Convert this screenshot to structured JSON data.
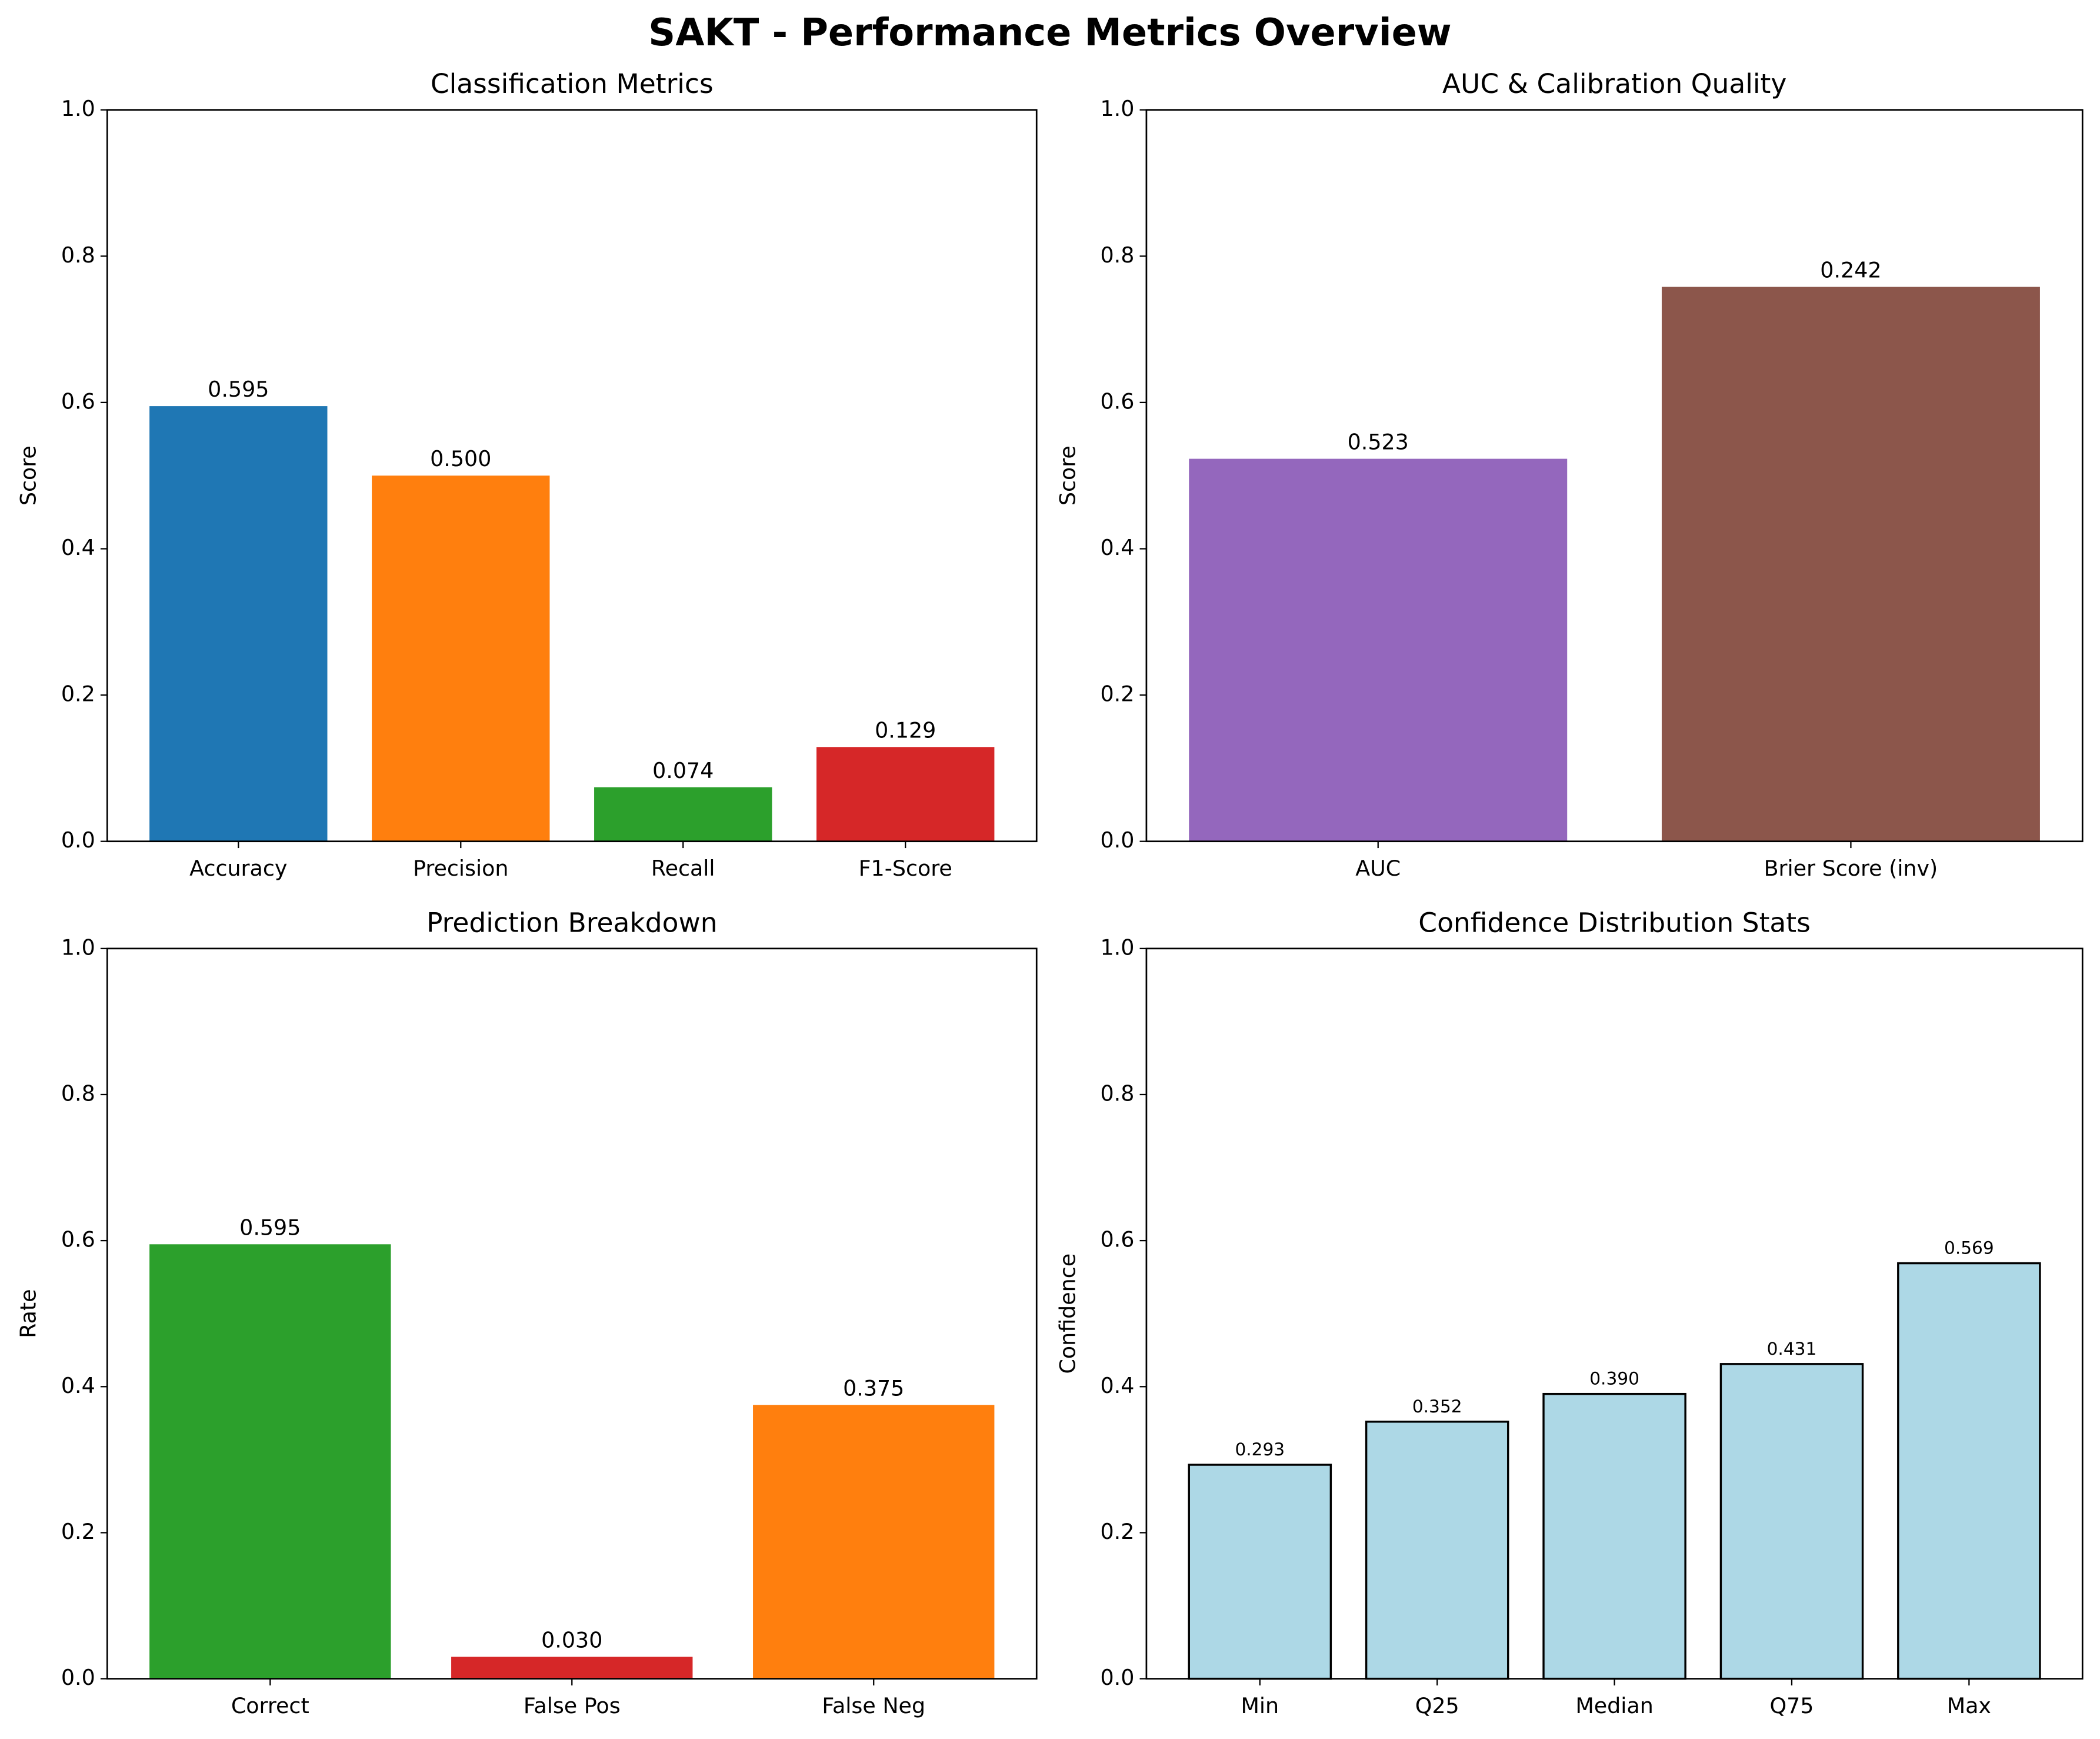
{
  "title": "SAKT - Performance Metrics Overview",
  "chart_data": [
    {
      "type": "bar",
      "title": "Classification Metrics",
      "y_label": "Score",
      "categories": [
        "Accuracy",
        "Precision",
        "Recall",
        "F1-Score"
      ],
      "values": [
        0.595,
        0.5,
        0.074,
        0.129
      ],
      "value_labels": [
        "0.595",
        "0.500",
        "0.074",
        "0.129"
      ],
      "colors": [
        "#1f77b4",
        "#ff7f0e",
        "#2ca02c",
        "#d62728"
      ],
      "ylim": [
        0,
        1
      ],
      "yticks": [
        {
          "value": 0,
          "label": "0.0"
        },
        {
          "value": 0.2,
          "label": "0.2"
        },
        {
          "value": 0.4,
          "label": "0.4"
        },
        {
          "value": 0.6,
          "label": "0.6"
        },
        {
          "value": 0.8,
          "label": "0.8"
        },
        {
          "value": 1,
          "label": "1.0"
        }
      ]
    },
    {
      "type": "bar",
      "title": "AUC & Calibration Quality",
      "y_label": "Score",
      "categories": [
        "AUC",
        "Brier Score (inv)"
      ],
      "values": [
        0.523,
        0.758
      ],
      "annotations": [
        "0.523",
        "0.242"
      ],
      "colors": [
        "#9467bd",
        "#8c564b"
      ],
      "ylim": [
        0,
        1
      ],
      "yticks": [
        {
          "value": 0,
          "label": "0.0"
        },
        {
          "value": 0.2,
          "label": "0.2"
        },
        {
          "value": 0.4,
          "label": "0.4"
        },
        {
          "value": 0.6,
          "label": "0.6"
        },
        {
          "value": 0.8,
          "label": "0.8"
        },
        {
          "value": 1,
          "label": "1.0"
        }
      ]
    },
    {
      "type": "bar",
      "title": "Prediction Breakdown",
      "y_label": "Rate",
      "categories": [
        "Correct",
        "False Pos",
        "False Neg"
      ],
      "values": [
        0.595,
        0.03,
        0.375
      ],
      "value_labels": [
        "0.595",
        "0.030",
        "0.375"
      ],
      "colors": [
        "#2ca02c",
        "#d62728",
        "#ff7f0e"
      ],
      "ylim": [
        0,
        1
      ],
      "yticks": [
        {
          "value": 0,
          "label": "0.0"
        },
        {
          "value": 0.2,
          "label": "0.2"
        },
        {
          "value": 0.4,
          "label": "0.4"
        },
        {
          "value": 0.6,
          "label": "0.6"
        },
        {
          "value": 0.8,
          "label": "0.8"
        },
        {
          "value": 1,
          "label": "1.0"
        }
      ]
    },
    {
      "type": "bar",
      "title": "Confidence Distribution Stats",
      "y_label": "Confidence",
      "categories": [
        "Min",
        "Q25",
        "Median",
        "Q75",
        "Max"
      ],
      "values": [
        0.293,
        0.352,
        0.39,
        0.431,
        0.569
      ],
      "value_labels": [
        "0.293",
        "0.352",
        "0.390",
        "0.431",
        "0.569"
      ],
      "colors": [
        "#add8e6",
        "#add8e6",
        "#add8e6",
        "#add8e6",
        "#add8e6"
      ],
      "edgecolor": "#000000",
      "ylim": [
        0,
        1
      ],
      "yticks": [
        {
          "value": 0,
          "label": "0.0"
        },
        {
          "value": 0.2,
          "label": "0.2"
        },
        {
          "value": 0.4,
          "label": "0.4"
        },
        {
          "value": 0.6,
          "label": "0.6"
        },
        {
          "value": 0.8,
          "label": "0.8"
        },
        {
          "value": 1,
          "label": "1.0"
        }
      ]
    }
  ]
}
